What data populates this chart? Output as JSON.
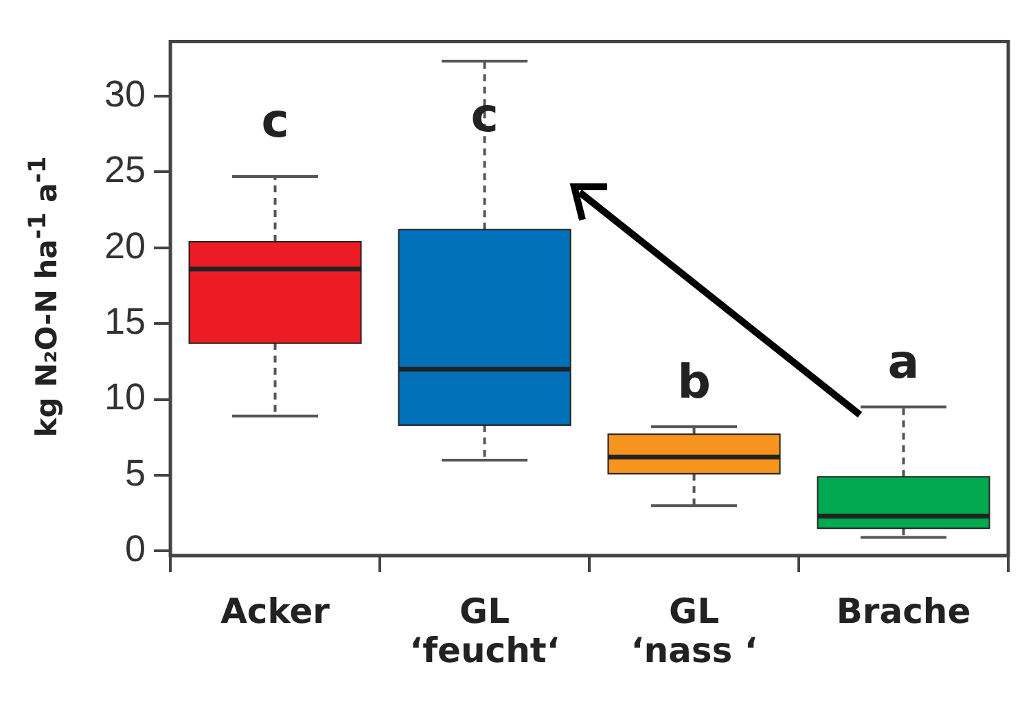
{
  "chart_data": {
    "type": "box",
    "ylabel": "kg N₂O-N ha$^{-1}$ a$^{-1}$",
    "categories": [
      "Acker",
      "GL ‘feucht‘",
      "GL ‘nass ‘",
      "Brache"
    ],
    "colors": [
      "#ed1c24",
      "#0070b8",
      "#f7941d",
      "#00a94f"
    ],
    "boxes": [
      {
        "low": 8.9,
        "q1": 13.7,
        "median": 18.6,
        "q3": 20.4,
        "high": 24.7
      },
      {
        "low": 6.0,
        "q1": 8.3,
        "median": 12.0,
        "q3": 21.2,
        "high": 32.3
      },
      {
        "low": 3.0,
        "q1": 5.1,
        "median": 6.2,
        "q3": 7.7,
        "high": 8.2
      },
      {
        "low": 0.9,
        "q1": 1.5,
        "median": 2.3,
        "q3": 4.9,
        "high": 9.5
      }
    ],
    "ylim": [
      -0.3,
      33.6
    ],
    "yticks": [
      0,
      5,
      10,
      15,
      20,
      25,
      30
    ],
    "grid": false,
    "legend": false,
    "annotations": [
      "c",
      "c",
      "b",
      "a"
    ]
  }
}
